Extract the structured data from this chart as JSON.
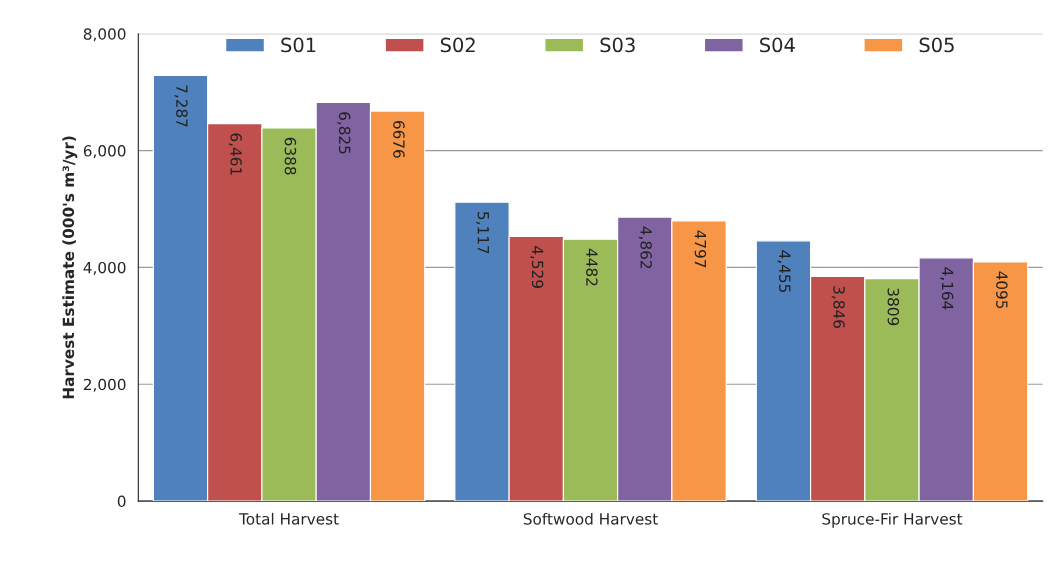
{
  "chart_data": {
    "type": "bar",
    "ylabel": "Harvest Estimate (000's m³/yr)",
    "categories": [
      "Total Harvest",
      "Softwood Harvest",
      "Spruce-Fir Harvest"
    ],
    "series": [
      {
        "name": "S01",
        "color": "#4f81bd",
        "values": [
          7287,
          5117,
          4455
        ],
        "value_labels": [
          "7,287",
          "5,117",
          "4,455"
        ]
      },
      {
        "name": "S02",
        "color": "#c0504d",
        "values": [
          6461,
          4529,
          3846
        ],
        "value_labels": [
          "6,461",
          "4,529",
          "3,846"
        ]
      },
      {
        "name": "S03",
        "color": "#9bbb59",
        "values": [
          6388,
          4482,
          3809
        ],
        "value_labels": [
          "6388",
          "4482",
          "3809"
        ]
      },
      {
        "name": "S04",
        "color": "#8064a2",
        "values": [
          6825,
          4862,
          4164
        ],
        "value_labels": [
          "6,825",
          "4,862",
          "4,164"
        ]
      },
      {
        "name": "S05",
        "color": "#f79646",
        "values": [
          6676,
          4797,
          4095
        ],
        "value_labels": [
          "6676",
          "4797",
          "4095"
        ]
      }
    ],
    "ylim": [
      0,
      8000
    ],
    "yticks": [
      {
        "value": 0,
        "label": "0"
      },
      {
        "value": 2000,
        "label": "2,000"
      },
      {
        "value": 4000,
        "label": "4,000"
      },
      {
        "value": 6000,
        "label": "6,000"
      },
      {
        "value": 8000,
        "label": "8,000"
      }
    ],
    "grid": "y",
    "legend": "top"
  }
}
